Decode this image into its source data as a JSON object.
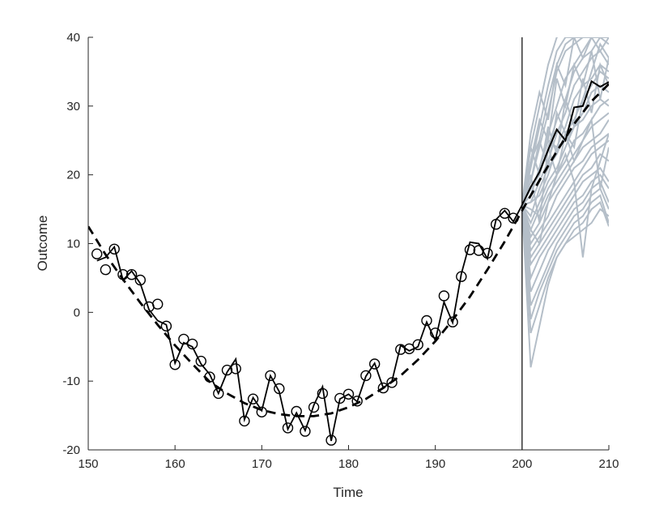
{
  "chart_data": {
    "type": "line",
    "title": "",
    "xlabel": "Time",
    "ylabel": "Outcome",
    "xlim": [
      150,
      210
    ],
    "ylim": [
      -20,
      40
    ],
    "xticks": [
      150,
      160,
      170,
      180,
      190,
      200,
      210
    ],
    "yticks": [
      -20,
      -10,
      0,
      10,
      20,
      30,
      40
    ],
    "grid": false,
    "legend": "none",
    "forecast_start": 200,
    "colors": {
      "observed": "#000000",
      "trend": "#000000",
      "simulations": "#b4bec8",
      "axis": "#262626"
    },
    "observed": {
      "x": [
        151,
        152,
        153,
        154,
        155,
        156,
        157,
        158,
        159,
        160,
        161,
        162,
        163,
        164,
        165,
        166,
        167,
        168,
        169,
        170,
        171,
        172,
        173,
        174,
        175,
        176,
        177,
        178,
        179,
        180,
        181,
        182,
        183,
        184,
        185,
        186,
        187,
        188,
        189,
        190,
        191,
        192,
        193,
        194,
        195,
        196,
        197,
        198,
        199
      ],
      "y": [
        8.5,
        6.2,
        9.2,
        5.5,
        5.5,
        4.7,
        0.8,
        1.2,
        -2,
        -7.6,
        -3.9,
        -4.6,
        -7.1,
        -9.4,
        -11.8,
        -8.4,
        -8.2,
        -15.8,
        -12.6,
        -14.5,
        -9.2,
        -11.1,
        -16.8,
        -14.4,
        -17.3,
        -13.8,
        -11.8,
        -18.6,
        -12.5,
        -11.9,
        -12.9,
        -9.2,
        -7.5,
        -11,
        -10.2,
        -5.4,
        -5.3,
        -4.7,
        -1.2,
        -3,
        2.4,
        -1.4,
        5.2,
        9.1,
        9,
        8.6,
        12.8,
        14.4,
        13.7
      ]
    },
    "observed_line": {
      "x": [
        151,
        152,
        153,
        154,
        155,
        156,
        157,
        158,
        159,
        160,
        161,
        162,
        163,
        164,
        165,
        166,
        167,
        168,
        169,
        170,
        171,
        172,
        173,
        174,
        175,
        176,
        177,
        178,
        179,
        180,
        181,
        182,
        183,
        184,
        185,
        186,
        187,
        188,
        189,
        190,
        191,
        192,
        193,
        194,
        195,
        196,
        197,
        198,
        199,
        200
      ],
      "y": [
        7.5,
        8,
        9.5,
        4.7,
        6,
        4.2,
        0.4,
        -1.2,
        -1.8,
        -7.4,
        -4.4,
        -5,
        -7.5,
        -9,
        -11.8,
        -8.7,
        -6.8,
        -15.6,
        -12.4,
        -14.3,
        -9.2,
        -11.5,
        -17,
        -14.6,
        -17.2,
        -13.5,
        -10.8,
        -18.7,
        -12.6,
        -11.9,
        -13,
        -9.3,
        -7.4,
        -11,
        -10,
        -4.8,
        -5.6,
        -5,
        -1.4,
        -4.1,
        1.5,
        -1.5,
        5.6,
        10.2,
        10,
        7.8,
        13.5,
        14.8,
        13.2,
        15.6
      ]
    },
    "forecast_line": {
      "x": [
        200,
        201,
        202,
        203,
        204,
        205,
        206,
        207,
        208,
        209,
        210
      ],
      "y": [
        15.6,
        18.2,
        20.4,
        23.6,
        26.6,
        25,
        29.8,
        30,
        33.6,
        32.8,
        33.5
      ]
    },
    "trend": {
      "x": [
        150,
        152,
        154,
        156,
        158,
        160,
        162,
        164,
        166,
        168,
        170,
        172,
        174,
        176,
        178,
        180,
        182,
        184,
        186,
        188,
        190,
        192,
        194,
        196,
        198,
        200,
        202,
        204,
        206,
        208,
        210
      ],
      "y": [
        12.5,
        8.4,
        4.8,
        1.4,
        -1.8,
        -4.8,
        -7.5,
        -10.1,
        -11.8,
        -13.2,
        -14.2,
        -14.8,
        -15.1,
        -15.1,
        -14.7,
        -13.8,
        -12.6,
        -11,
        -9.2,
        -6.9,
        -4.2,
        -1.1,
        2.3,
        6.2,
        10.3,
        14.8,
        19.2,
        23.4,
        27.4,
        30.7,
        33.2
      ]
    },
    "simulations": [
      {
        "y": [
          15.6,
          24,
          30,
          36,
          40,
          41,
          40,
          40,
          40,
          40,
          40
        ]
      },
      {
        "y": [
          15.6,
          21,
          27,
          33,
          38,
          40,
          40,
          40,
          40,
          40,
          40
        ]
      },
      {
        "y": [
          15.6,
          22,
          25,
          31,
          36,
          39,
          40,
          40,
          40,
          40,
          40
        ]
      },
      {
        "y": [
          15.6,
          19,
          24,
          29,
          35,
          38,
          39,
          40,
          40,
          40,
          40
        ]
      },
      {
        "y": [
          15.6,
          17,
          21,
          26,
          30,
          34,
          36,
          38,
          40,
          40,
          40
        ]
      },
      {
        "y": [
          15.6,
          18,
          20,
          24,
          28,
          31,
          35,
          37,
          38,
          40,
          39
        ]
      },
      {
        "y": [
          15.6,
          16,
          19,
          22,
          26,
          29,
          33,
          35,
          37,
          38,
          36
        ]
      },
      {
        "y": [
          15.6,
          17,
          21,
          25,
          24,
          27,
          31,
          33,
          34,
          36,
          35
        ]
      },
      {
        "y": [
          15.6,
          14,
          18,
          21,
          23,
          26,
          28,
          31,
          33,
          35,
          34
        ]
      },
      {
        "y": [
          15.6,
          16,
          17,
          20,
          24,
          25,
          27,
          29,
          32,
          33,
          32
        ]
      },
      {
        "y": [
          15.6,
          13,
          16,
          19,
          21,
          24,
          27,
          28,
          30,
          31,
          30
        ]
      },
      {
        "y": [
          15.6,
          12,
          15,
          18,
          20,
          22,
          25,
          26,
          28,
          30,
          31
        ]
      },
      {
        "y": [
          15.6,
          15,
          14,
          17,
          19,
          21,
          23,
          25,
          27,
          28,
          29
        ]
      },
      {
        "y": [
          15.6,
          11,
          13,
          16,
          18,
          20,
          22,
          24,
          25,
          26,
          28
        ]
      },
      {
        "y": [
          15.6,
          10,
          12,
          14,
          17,
          19,
          21,
          22,
          24,
          25,
          26
        ]
      },
      {
        "y": [
          15.6,
          9,
          11,
          13,
          15,
          17,
          19,
          21,
          23,
          24,
          25
        ]
      },
      {
        "y": [
          15.6,
          8,
          10,
          12,
          14,
          16,
          18,
          20,
          21,
          23,
          22
        ]
      },
      {
        "y": [
          15.6,
          7,
          9,
          11,
          13,
          15,
          17,
          19,
          20,
          21,
          19
        ]
      },
      {
        "y": [
          15.6,
          5,
          8,
          10,
          12,
          14,
          16,
          17,
          19,
          20,
          18
        ]
      },
      {
        "y": [
          15.6,
          3,
          6,
          9,
          11,
          13,
          15,
          16,
          18,
          19,
          16
        ]
      },
      {
        "y": [
          15.6,
          1,
          4,
          7,
          10,
          12,
          14,
          15,
          17,
          18,
          15
        ]
      },
      {
        "y": [
          15.6,
          -1,
          3,
          6,
          9,
          11,
          13,
          14,
          16,
          17,
          13
        ]
      },
      {
        "y": [
          15.6,
          -8,
          -2,
          4,
          8,
          10,
          12,
          13,
          15,
          16,
          12.5
        ]
      },
      {
        "y": [
          15.6,
          -3,
          1,
          5,
          8,
          10,
          11,
          12,
          13,
          15,
          14
        ]
      },
      {
        "y": [
          15.6,
          12,
          10,
          16,
          20,
          23,
          19,
          8,
          18,
          22,
          26
        ]
      },
      {
        "y": [
          15.6,
          20,
          13,
          24,
          20,
          26,
          22,
          25,
          28,
          18,
          24
        ]
      },
      {
        "y": [
          15.6,
          22,
          28,
          25,
          34,
          30,
          36,
          33,
          38,
          31,
          37
        ]
      },
      {
        "y": [
          15.6,
          24,
          20,
          27,
          23,
          31,
          27,
          34,
          29,
          36,
          33
        ]
      },
      {
        "y": [
          15.6,
          26,
          32,
          28,
          36,
          33,
          40,
          37,
          40,
          38,
          40
        ]
      },
      {
        "y": [
          15.6,
          19,
          25,
          21,
          29,
          26,
          24,
          31,
          35,
          39,
          37
        ]
      }
    ]
  }
}
